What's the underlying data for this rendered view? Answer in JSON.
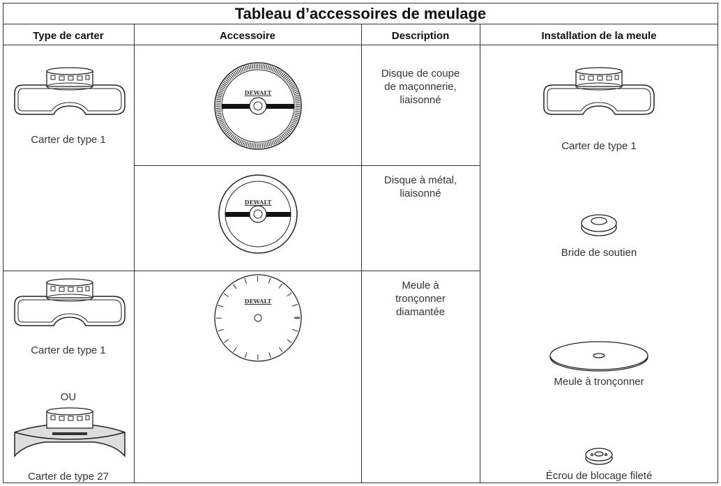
{
  "table": {
    "title": "Tableau d’accessoires de meulage",
    "headers": [
      "Type de carter",
      "Accessoire",
      "Description",
      "Installation de la meule"
    ],
    "guard_cells": [
      {
        "labels": [
          "Carter de type 1"
        ]
      },
      {
        "labels": [
          "Carter de type 1",
          "OU",
          "Carter de type 27"
        ]
      }
    ],
    "accessories": [
      {
        "logo": "DEWALT",
        "description": "Disque de coupe de maçonnerie, liaisonné"
      },
      {
        "logo": "DEWALT",
        "description": "Disque à métal, liaisonné"
      },
      {
        "logo": "DEWALT",
        "description": "Meule à tronçonner diamantée"
      }
    ],
    "installation": [
      "Carter de type 1",
      "Bride de soutien",
      "Meule à tronçonner",
      "Écrou de blocage fileté"
    ]
  }
}
